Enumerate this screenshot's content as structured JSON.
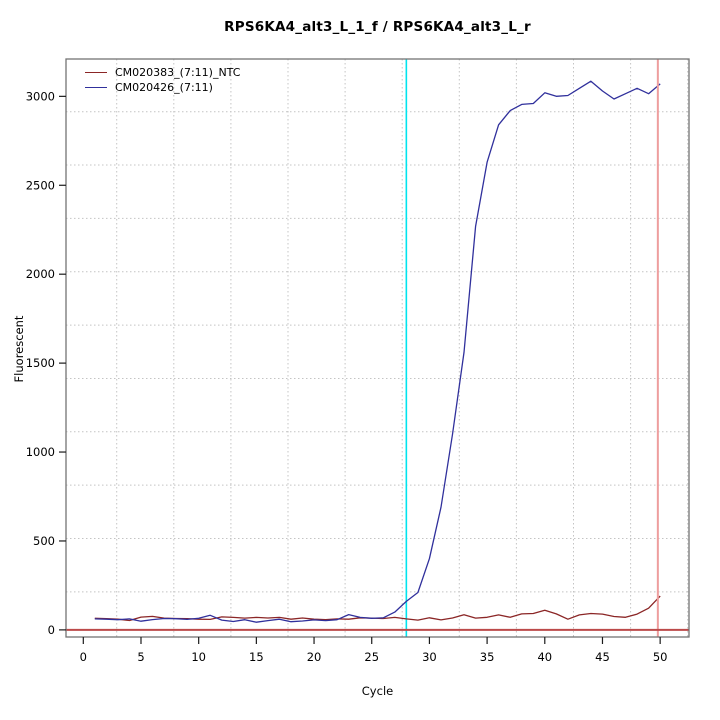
{
  "chart_data": {
    "type": "line",
    "title": "RPS6KA4_alt3_L_1_f / RPS6KA4_alt3_L_r",
    "xlabel": "Cycle",
    "ylabel": "Fluorescent",
    "x_start_cycle": 1,
    "x": [
      1,
      2,
      3,
      4,
      5,
      6,
      7,
      8,
      9,
      10,
      11,
      12,
      13,
      14,
      15,
      16,
      17,
      18,
      19,
      20,
      21,
      22,
      23,
      24,
      25,
      26,
      27,
      28,
      29,
      30,
      31,
      32,
      33,
      34,
      35,
      36,
      37,
      38,
      39,
      40,
      41,
      42,
      43,
      44,
      45,
      46,
      47,
      48,
      49,
      50
    ],
    "series": [
      {
        "name": "CM020383_(7:11)_NTC",
        "color": "#8b2626",
        "values": [
          65,
          63,
          60,
          53,
          72,
          76,
          66,
          64,
          63,
          60,
          59,
          73,
          70,
          66,
          70,
          67,
          70,
          60,
          67,
          60,
          57,
          62,
          60,
          68,
          66,
          64,
          70,
          62,
          55,
          68,
          56,
          67,
          85,
          66,
          71,
          84,
          71,
          90,
          92,
          110,
          90,
          60,
          84,
          92,
          89,
          75,
          71,
          89,
          122,
          190
        ]
      },
      {
        "name": "CM020426_(7:11)",
        "color": "#30309c",
        "values": [
          62,
          60,
          57,
          62,
          49,
          58,
          64,
          63,
          59,
          65,
          82,
          55,
          47,
          57,
          43,
          52,
          60,
          46,
          50,
          56,
          52,
          57,
          86,
          70,
          65,
          68,
          100,
          160,
          210,
          400,
          690,
          1100,
          1560,
          2270,
          2630,
          2840,
          2920,
          2955,
          2960,
          3020,
          3000,
          3005,
          3045,
          3085,
          3030,
          2985,
          3015,
          3045,
          3015,
          3070
        ]
      }
    ],
    "xticks": {
      "values": [
        0,
        5,
        10,
        15,
        20,
        25,
        30,
        35,
        40,
        45,
        50
      ],
      "labels": [
        "0",
        "5",
        "10",
        "15",
        "20",
        "25",
        "30",
        "35",
        "40",
        "45",
        "50"
      ]
    },
    "yticks": {
      "values": [
        0,
        500,
        1000,
        1500,
        2000,
        2500,
        3000
      ],
      "labels": [
        "0",
        "500",
        "1000",
        "1500",
        "2000",
        "2500",
        "3000"
      ]
    },
    "xlim": [
      -1.5,
      52.5
    ],
    "ylim": [
      -40,
      3210
    ],
    "grid": "dotted",
    "legend_position": "top-left",
    "markers": {
      "vline_cyan": {
        "x": 28,
        "color": "#00e4ee"
      },
      "vline_pink": {
        "x": 49.8,
        "color": "#ee9e9e"
      },
      "hline_threshold": {
        "y": 0,
        "color": "#bc4a4a"
      }
    },
    "colors": {
      "grid": "#c4c4c4",
      "box": "#737373",
      "tick": "#1a1a1a",
      "tick_label": "#000000",
      "background": "#ffffff"
    }
  }
}
